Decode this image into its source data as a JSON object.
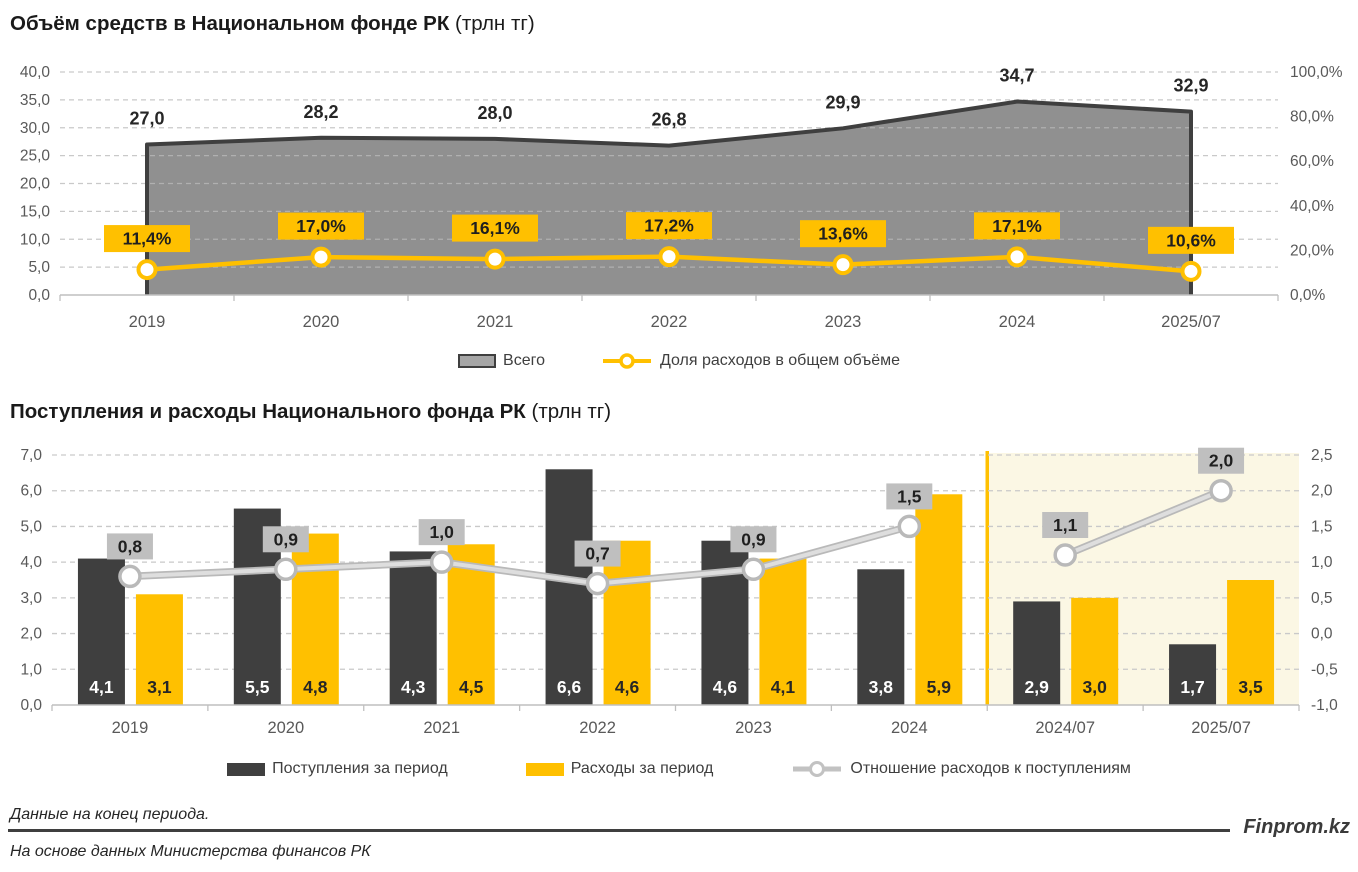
{
  "page": {
    "footer": {
      "note_top": "Данные на конец периода.",
      "note_bottom": "На основе данных Министерства финансов РК",
      "brand": "Finprom.kz"
    },
    "colors": {
      "accent_yellow": "#FFC000",
      "dark": "#3F3F3F",
      "area_gray": "#8C8C8C",
      "ratio_line_gray": "#C2C2C2",
      "label_box_gray": "#BFBFBF",
      "highlight_bg": "#FBF7E4",
      "axis_text": "#595959",
      "grid": "#C9C9C9"
    }
  },
  "chart_data": [
    {
      "type": "area",
      "title": "Объём средств в Национальном фонде РК",
      "title_suffix": " (трлн тг)",
      "categories": [
        "2019",
        "2020",
        "2021",
        "2022",
        "2023",
        "2024",
        "2025/07"
      ],
      "series": [
        {
          "name": "Всего",
          "type": "area",
          "axis": "left",
          "values": [
            27.0,
            28.2,
            28.0,
            26.8,
            29.9,
            34.7,
            32.9
          ],
          "labels": [
            "27,0",
            "28,2",
            "28,0",
            "26,8",
            "29,9",
            "34,7",
            "32,9"
          ]
        },
        {
          "name": "Доля расходов в общем объёме",
          "type": "line",
          "axis": "right",
          "values": [
            11.4,
            17.0,
            16.1,
            17.2,
            13.6,
            17.1,
            10.6
          ],
          "labels": [
            "11,4%",
            "17,0%",
            "16,1%",
            "17,2%",
            "13,6%",
            "17,1%",
            "10,6%"
          ]
        }
      ],
      "left_axis": {
        "min": 0,
        "max": 40,
        "step": 5,
        "ticks": [
          "40,0",
          "35,0",
          "30,0",
          "25,0",
          "20,0",
          "15,0",
          "10,0",
          "5,0",
          "0,0"
        ]
      },
      "right_axis": {
        "min": 0,
        "max": 100,
        "step": 20,
        "ticks": [
          "100,0%",
          "80,0%",
          "60,0%",
          "40,0%",
          "20,0%",
          "0,0%"
        ]
      },
      "grid": true,
      "legend_position": "bottom"
    },
    {
      "type": "bar",
      "title": "Поступления и расходы Национального фонда РК",
      "title_suffix": " (трлн тг)",
      "categories": [
        "2019",
        "2020",
        "2021",
        "2022",
        "2023",
        "2024",
        "2024/07",
        "2025/07"
      ],
      "series": [
        {
          "name": "Поступления за период",
          "type": "bar",
          "axis": "left",
          "values": [
            4.1,
            5.5,
            4.3,
            6.6,
            4.6,
            3.8,
            2.9,
            1.7
          ],
          "labels": [
            "4,1",
            "5,5",
            "4,3",
            "6,6",
            "4,6",
            "3,8",
            "2,9",
            "1,7"
          ]
        },
        {
          "name": "Расходы за период",
          "type": "bar",
          "axis": "left",
          "values": [
            3.1,
            4.8,
            4.5,
            4.6,
            4.1,
            5.9,
            3.0,
            3.5
          ],
          "labels": [
            "3,1",
            "4,8",
            "4,5",
            "4,6",
            "4,1",
            "5,9",
            "3,0",
            "3,5"
          ]
        },
        {
          "name": "Отношение расходов к поступлениям",
          "type": "line",
          "axis": "right",
          "values": [
            0.8,
            0.9,
            1.0,
            0.7,
            0.9,
            1.5,
            1.1,
            2.0
          ],
          "labels": [
            "0,8",
            "0,9",
            "1,0",
            "0,7",
            "0,9",
            "1,5",
            "1,1",
            "2,0"
          ],
          "segments": [
            [
              0,
              5
            ],
            [
              6,
              7
            ]
          ]
        }
      ],
      "left_axis": {
        "min": 0,
        "max": 7,
        "step": 1,
        "ticks": [
          "7,0",
          "6,0",
          "5,0",
          "4,0",
          "3,0",
          "2,0",
          "1,0",
          "0,0"
        ]
      },
      "right_axis": {
        "min": -1.0,
        "max": 2.5,
        "step": 0.5,
        "ticks": [
          "2,5",
          "2,0",
          "1,5",
          "1,0",
          "0,5",
          "0,0",
          "-0,5",
          "-1,0"
        ]
      },
      "grid": true,
      "highlight_from_index": 6,
      "legend_position": "bottom"
    }
  ]
}
